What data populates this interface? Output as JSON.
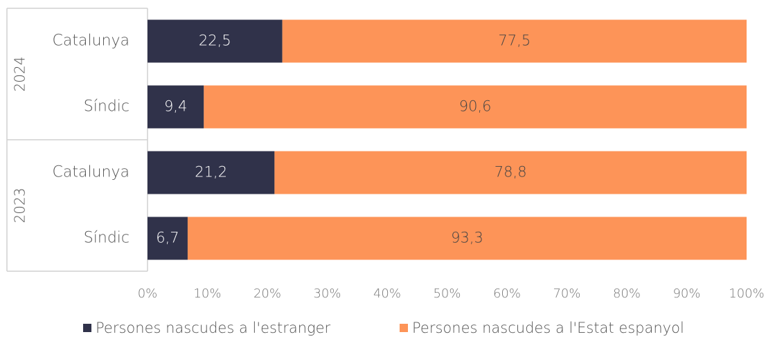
{
  "chart_data": {
    "type": "stacked_barh",
    "groups": [
      "2024",
      "2023"
    ],
    "categories": [
      "Catalunya",
      "Síndic",
      "Catalunya",
      "Síndic"
    ],
    "series": [
      {
        "name": "Persones nascudes a l'estranger",
        "color": "#30324a",
        "values": [
          22.5,
          9.4,
          21.2,
          6.7
        ],
        "value_labels": [
          "22,5",
          "9,4",
          "21,2",
          "6,7"
        ]
      },
      {
        "name": "Persones nascudes a l'Estat espanyol",
        "color": "#fd9458",
        "values": [
          77.5,
          90.6,
          78.8,
          93.3
        ],
        "value_labels": [
          "77,5",
          "90,6",
          "78,8",
          "93,3"
        ]
      }
    ],
    "xlim": [
      0,
      100
    ],
    "xticks": [
      {
        "value": 0,
        "label": "0%"
      },
      {
        "value": 10,
        "label": "10%"
      },
      {
        "value": 20,
        "label": "20%"
      },
      {
        "value": 30,
        "label": "30%"
      },
      {
        "value": 40,
        "label": "40%"
      },
      {
        "value": 50,
        "label": "50%"
      },
      {
        "value": 60,
        "label": "60%"
      },
      {
        "value": 70,
        "label": "70%"
      },
      {
        "value": 80,
        "label": "80%"
      },
      {
        "value": 90,
        "label": "90%"
      },
      {
        "value": 100,
        "label": "100%"
      }
    ],
    "legend": "bottom"
  }
}
